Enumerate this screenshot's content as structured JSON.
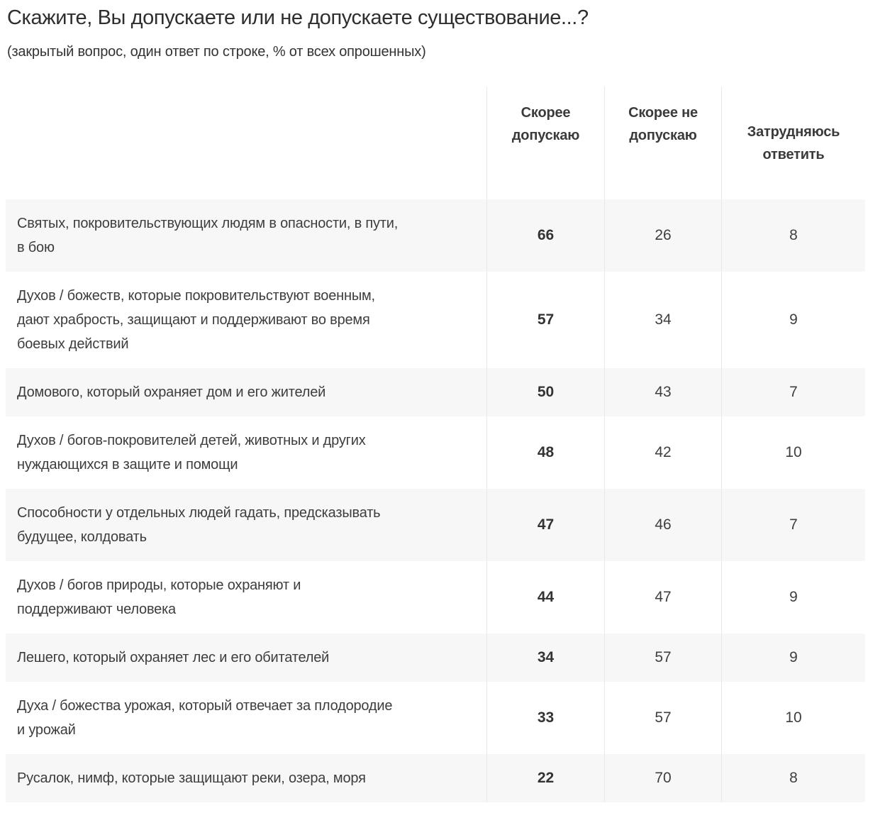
{
  "chart_data": {
    "type": "table",
    "title": "Скажите, Вы допускаете или не допускаете существование...?",
    "subtitle": "(закрытый вопрос, один ответ по строке, % от всех опрошенных)",
    "units": "% от всех опрошенных",
    "columns": [
      "Скорее допускаю",
      "Скорее не допускаю",
      "Затрудняюсь ответить"
    ],
    "rows": [
      {
        "label": "Святых, покровительствующих людям в опасности, в пути,\nв бою",
        "values": [
          66,
          26,
          8
        ]
      },
      {
        "label": "Духов / божеств, которые покровительствуют военным,\nдают храбрость, защищают и поддерживают во время\nбоевых действий",
        "values": [
          57,
          34,
          9
        ]
      },
      {
        "label": "Домового, который охраняет дом и его жителей",
        "values": [
          50,
          43,
          7
        ]
      },
      {
        "label": "Духов / богов-покровителей детей, животных и других\nнуждающихся в защите и помощи",
        "values": [
          48,
          42,
          10
        ]
      },
      {
        "label": "Способности у отдельных людей гадать, предсказывать\nбудущее, колдовать",
        "values": [
          47,
          46,
          7
        ]
      },
      {
        "label": "Духов / богов природы, которые охраняют и\nподдерживают человека",
        "values": [
          44,
          47,
          9
        ]
      },
      {
        "label": "Лешего, который охраняет лес и его обитателей",
        "values": [
          34,
          57,
          9
        ]
      },
      {
        "label": "Духа / божества урожая, который отвечает за плодородие\nи урожай",
        "values": [
          33,
          57,
          10
        ]
      },
      {
        "label": "Русалок, нимф, которые защищают реки, озера, моря",
        "values": [
          22,
          70,
          8
        ]
      }
    ]
  },
  "colors": {
    "row_stripe": "#f7f7f7",
    "column_border": "#e8e8e8",
    "text": "#3d3d3d"
  }
}
